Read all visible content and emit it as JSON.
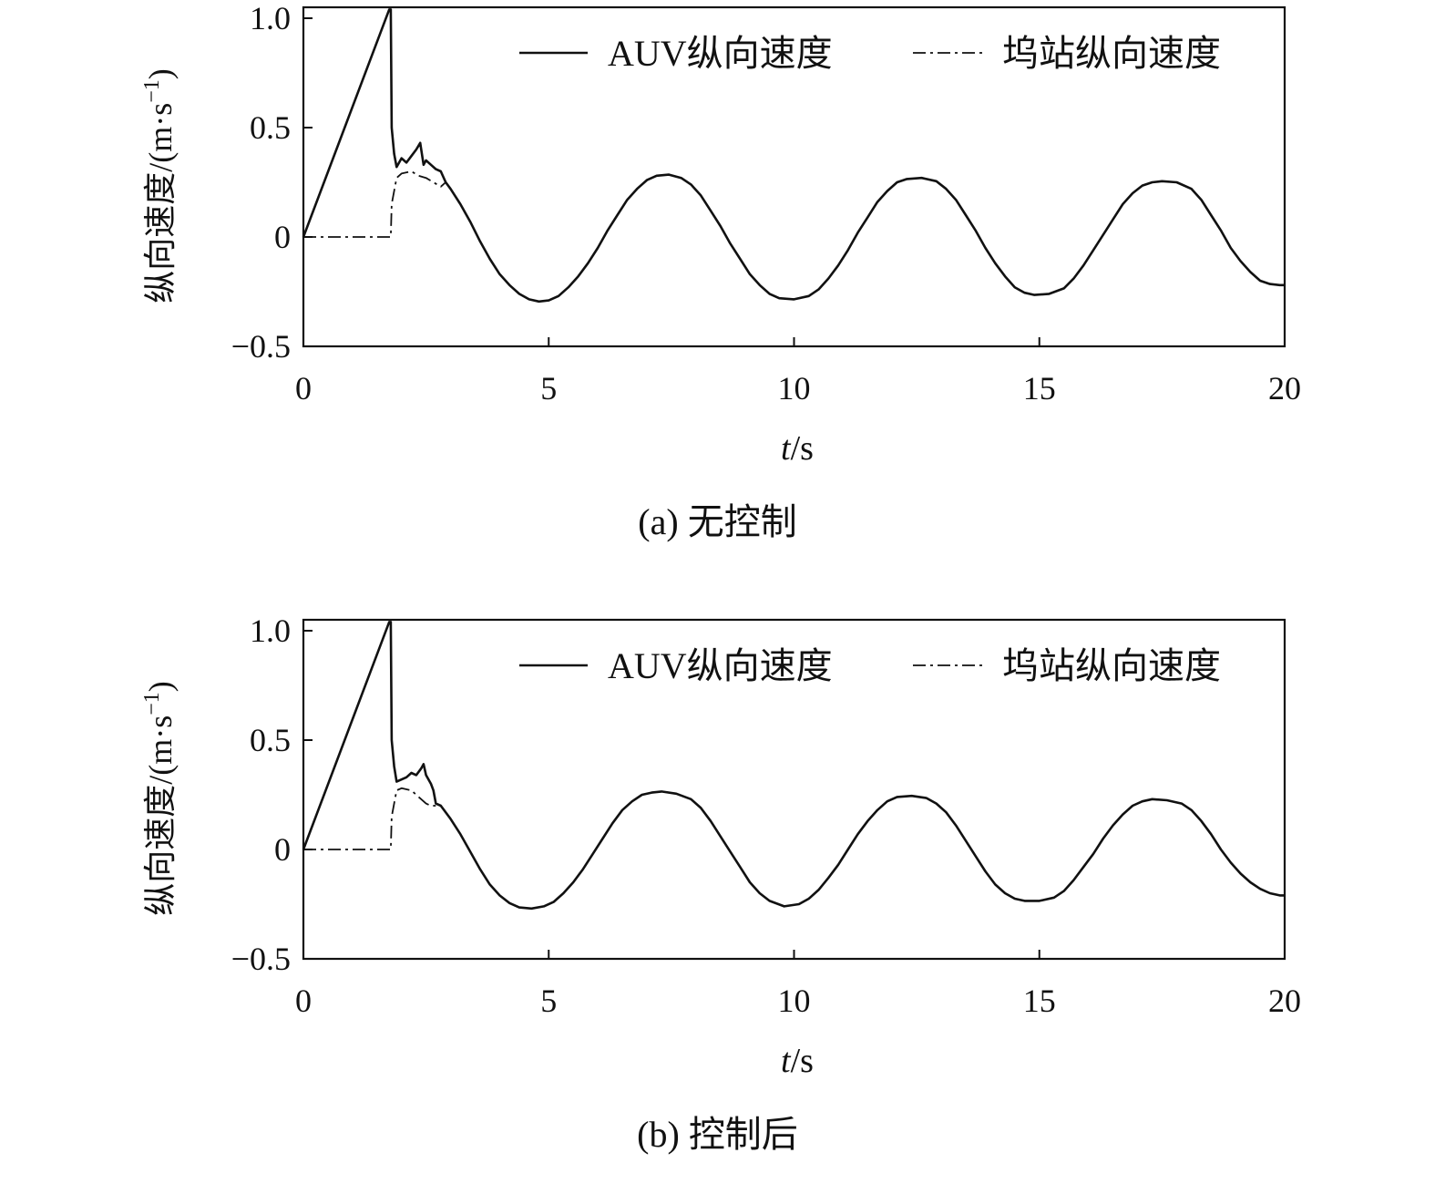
{
  "chart_data": [
    {
      "type": "line",
      "panel_id": "a",
      "caption": "(a) 无控制",
      "xlabel_italic": "t",
      "xlabel_rest": "/s",
      "ylabel": "纵向速度/(m·s",
      "ylabel_sup": "−1",
      "ylabel_close": ")",
      "xlim": [
        0,
        20
      ],
      "ylim": [
        -0.5,
        1.05
      ],
      "xticks": [
        0,
        5,
        10,
        15,
        20
      ],
      "xtick_labels": [
        "0",
        "5",
        "10",
        "15",
        "20"
      ],
      "yticks": [
        -0.5,
        0,
        0.5,
        1.0
      ],
      "ytick_labels": [
        "−0.5",
        "0",
        "0.5",
        "1.0"
      ],
      "grid": false,
      "legend_position": "top-right",
      "series": [
        {
          "name": "AUV纵向速度",
          "style": "solid",
          "x": [
            0,
            1.75,
            1.78,
            1.8,
            1.85,
            1.9,
            2.0,
            2.1,
            2.2,
            2.3,
            2.38,
            2.45,
            2.5,
            2.6,
            2.7,
            2.8,
            2.9,
            3.0,
            3.2,
            3.4,
            3.6,
            3.8,
            4.0,
            4.2,
            4.4,
            4.6,
            4.8,
            5.0,
            5.2,
            5.4,
            5.6,
            5.8,
            6.0,
            6.2,
            6.4,
            6.6,
            6.8,
            7.0,
            7.2,
            7.45,
            7.7,
            7.9,
            8.1,
            8.3,
            8.5,
            8.7,
            8.9,
            9.1,
            9.3,
            9.5,
            9.7,
            10.0,
            10.3,
            10.5,
            10.7,
            10.9,
            11.1,
            11.3,
            11.5,
            11.7,
            11.9,
            12.1,
            12.3,
            12.6,
            12.9,
            13.1,
            13.3,
            13.5,
            13.7,
            13.9,
            14.1,
            14.3,
            14.5,
            14.7,
            14.9,
            15.2,
            15.5,
            15.7,
            15.9,
            16.1,
            16.3,
            16.5,
            16.7,
            16.9,
            17.1,
            17.3,
            17.5,
            17.8,
            18.1,
            18.3,
            18.5,
            18.7,
            18.9,
            19.1,
            19.3,
            19.5,
            19.7,
            19.9,
            20.0
          ],
          "y": [
            0,
            1.04,
            1.04,
            0.5,
            0.38,
            0.32,
            0.36,
            0.34,
            0.37,
            0.4,
            0.43,
            0.33,
            0.35,
            0.33,
            0.31,
            0.3,
            0.25,
            0.22,
            0.15,
            0.07,
            -0.02,
            -0.1,
            -0.17,
            -0.22,
            -0.26,
            -0.285,
            -0.295,
            -0.29,
            -0.27,
            -0.23,
            -0.18,
            -0.12,
            -0.05,
            0.03,
            0.1,
            0.17,
            0.22,
            0.26,
            0.28,
            0.285,
            0.27,
            0.24,
            0.19,
            0.12,
            0.05,
            -0.03,
            -0.1,
            -0.17,
            -0.22,
            -0.26,
            -0.28,
            -0.285,
            -0.27,
            -0.24,
            -0.19,
            -0.13,
            -0.06,
            0.02,
            0.09,
            0.16,
            0.21,
            0.25,
            0.265,
            0.27,
            0.255,
            0.22,
            0.17,
            0.1,
            0.03,
            -0.05,
            -0.12,
            -0.18,
            -0.23,
            -0.255,
            -0.265,
            -0.26,
            -0.235,
            -0.19,
            -0.13,
            -0.06,
            0.01,
            0.08,
            0.15,
            0.2,
            0.235,
            0.25,
            0.255,
            0.25,
            0.22,
            0.17,
            0.1,
            0.03,
            -0.05,
            -0.11,
            -0.16,
            -0.2,
            -0.215,
            -0.22,
            -0.22
          ]
        },
        {
          "name": "坞站纵向速度",
          "style": "dashdot",
          "x": [
            0,
            1.78,
            1.8,
            1.9,
            2.0,
            2.2,
            2.35,
            2.5,
            2.65,
            2.8,
            2.9
          ],
          "y": [
            0,
            0,
            0.15,
            0.27,
            0.29,
            0.3,
            0.28,
            0.27,
            0.25,
            0.23,
            0.25
          ]
        }
      ]
    },
    {
      "type": "line",
      "panel_id": "b",
      "caption": "(b) 控制后",
      "xlabel_italic": "t",
      "xlabel_rest": "/s",
      "ylabel": "纵向速度/(m·s",
      "ylabel_sup": "−1",
      "ylabel_close": ")",
      "xlim": [
        0,
        20
      ],
      "ylim": [
        -0.5,
        1.05
      ],
      "xticks": [
        0,
        5,
        10,
        15,
        20
      ],
      "xtick_labels": [
        "0",
        "5",
        "10",
        "15",
        "20"
      ],
      "yticks": [
        -0.5,
        0,
        0.5,
        1.0
      ],
      "ytick_labels": [
        "−0.5",
        "0",
        "0.5",
        "1.0"
      ],
      "grid": false,
      "legend_position": "top-right",
      "series": [
        {
          "name": "AUV纵向速度",
          "style": "solid",
          "x": [
            0,
            1.75,
            1.78,
            1.8,
            1.85,
            1.9,
            2.0,
            2.1,
            2.2,
            2.3,
            2.4,
            2.45,
            2.5,
            2.6,
            2.65,
            2.7,
            2.8,
            3.0,
            3.2,
            3.4,
            3.6,
            3.8,
            4.0,
            4.2,
            4.4,
            4.65,
            4.9,
            5.1,
            5.3,
            5.5,
            5.7,
            5.9,
            6.1,
            6.3,
            6.5,
            6.7,
            6.9,
            7.1,
            7.3,
            7.6,
            7.9,
            8.1,
            8.3,
            8.5,
            8.7,
            8.9,
            9.1,
            9.3,
            9.5,
            9.8,
            10.1,
            10.3,
            10.5,
            10.7,
            10.9,
            11.1,
            11.3,
            11.5,
            11.7,
            11.9,
            12.1,
            12.4,
            12.7,
            12.9,
            13.1,
            13.3,
            13.5,
            13.7,
            13.9,
            14.1,
            14.3,
            14.5,
            14.7,
            15.0,
            15.3,
            15.5,
            15.7,
            15.9,
            16.1,
            16.3,
            16.5,
            16.7,
            16.9,
            17.1,
            17.3,
            17.6,
            17.9,
            18.1,
            18.3,
            18.5,
            18.7,
            18.9,
            19.1,
            19.3,
            19.5,
            19.7,
            19.9,
            20.0
          ],
          "y": [
            0,
            1.04,
            1.04,
            0.5,
            0.38,
            0.31,
            0.32,
            0.33,
            0.35,
            0.34,
            0.37,
            0.39,
            0.34,
            0.3,
            0.27,
            0.21,
            0.2,
            0.14,
            0.07,
            -0.01,
            -0.09,
            -0.16,
            -0.21,
            -0.245,
            -0.265,
            -0.27,
            -0.26,
            -0.24,
            -0.2,
            -0.15,
            -0.09,
            -0.02,
            0.05,
            0.12,
            0.18,
            0.22,
            0.25,
            0.26,
            0.265,
            0.255,
            0.23,
            0.19,
            0.13,
            0.06,
            -0.01,
            -0.08,
            -0.15,
            -0.2,
            -0.235,
            -0.26,
            -0.25,
            -0.225,
            -0.185,
            -0.13,
            -0.07,
            0.0,
            0.07,
            0.13,
            0.18,
            0.22,
            0.24,
            0.245,
            0.235,
            0.21,
            0.17,
            0.11,
            0.04,
            -0.03,
            -0.1,
            -0.16,
            -0.2,
            -0.225,
            -0.235,
            -0.235,
            -0.22,
            -0.19,
            -0.14,
            -0.08,
            -0.02,
            0.05,
            0.11,
            0.16,
            0.2,
            0.22,
            0.23,
            0.225,
            0.21,
            0.18,
            0.13,
            0.07,
            0.0,
            -0.06,
            -0.11,
            -0.15,
            -0.18,
            -0.2,
            -0.21,
            -0.21
          ]
        },
        {
          "name": "坞站纵向速度",
          "style": "dashdot",
          "x": [
            0,
            1.78,
            1.8,
            1.9,
            2.0,
            2.2,
            2.35,
            2.5,
            2.6,
            2.7,
            2.8
          ],
          "y": [
            0,
            0,
            0.15,
            0.27,
            0.28,
            0.27,
            0.24,
            0.21,
            0.2,
            0.2,
            0.2
          ]
        }
      ]
    }
  ]
}
